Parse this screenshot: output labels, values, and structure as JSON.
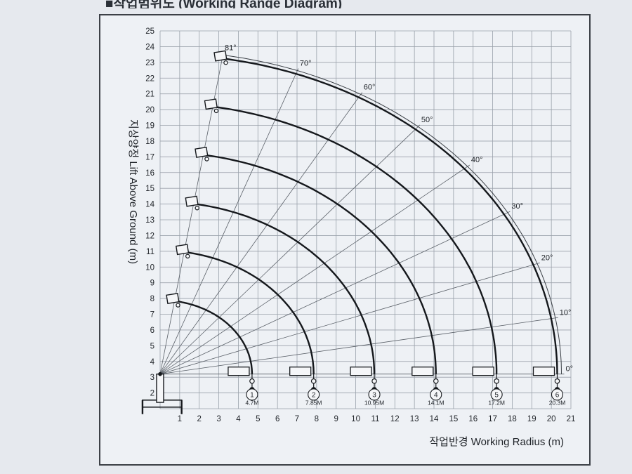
{
  "header": {
    "title": "■작업범위도 (Working Range Diagram)"
  },
  "chart_data": {
    "type": "line",
    "xlabel": "작업반경 Working Radius (m)",
    "ylabel": "지상양정 Lift Above Ground (m)",
    "xlim": [
      0,
      21
    ],
    "ylim": [
      1,
      25
    ],
    "xticks": [
      "1",
      "2",
      "3",
      "4",
      "5",
      "6",
      "7",
      "8",
      "9",
      "10",
      "11",
      "12",
      "13",
      "14",
      "15",
      "16",
      "17",
      "18",
      "19",
      "20",
      "21"
    ],
    "yticks": [
      "2",
      "3",
      "4",
      "5",
      "6",
      "7",
      "8",
      "9",
      "10",
      "11",
      "12",
      "13",
      "14",
      "15",
      "16",
      "17",
      "18",
      "19",
      "20",
      "21",
      "22",
      "23",
      "24",
      "25"
    ],
    "grid": true,
    "boom_pivot": {
      "x": 0,
      "y": 3.2
    },
    "angle_lines": [
      {
        "label": "81°",
        "angle": 81
      },
      {
        "label": "70°",
        "angle": 70
      },
      {
        "label": "60°",
        "angle": 60
      },
      {
        "label": "50°",
        "angle": 50
      },
      {
        "label": "40°",
        "angle": 40
      },
      {
        "label": "30°",
        "angle": 30
      },
      {
        "label": "20°",
        "angle": 20
      },
      {
        "label": "10°",
        "angle": 10
      },
      {
        "label": "0°",
        "angle": 0
      }
    ],
    "series": [
      {
        "name": "1",
        "max_radius_label": "4.7M",
        "max_radius": 4.7,
        "max_height": 7.8
      },
      {
        "name": "2",
        "max_radius_label": "7.85M",
        "max_radius": 7.85,
        "max_height": 10.8
      },
      {
        "name": "3",
        "max_radius_label": "10.95M",
        "max_radius": 10.95,
        "max_height": 13.8
      },
      {
        "name": "4",
        "max_radius_label": "14.1M",
        "max_radius": 14.1,
        "max_height": 16.8
      },
      {
        "name": "5",
        "max_radius_label": "17.2M",
        "max_radius": 17.2,
        "max_height": 19.8
      },
      {
        "name": "6",
        "max_radius_label": "20.3M",
        "max_radius": 20.3,
        "max_height": 22.9
      }
    ]
  }
}
